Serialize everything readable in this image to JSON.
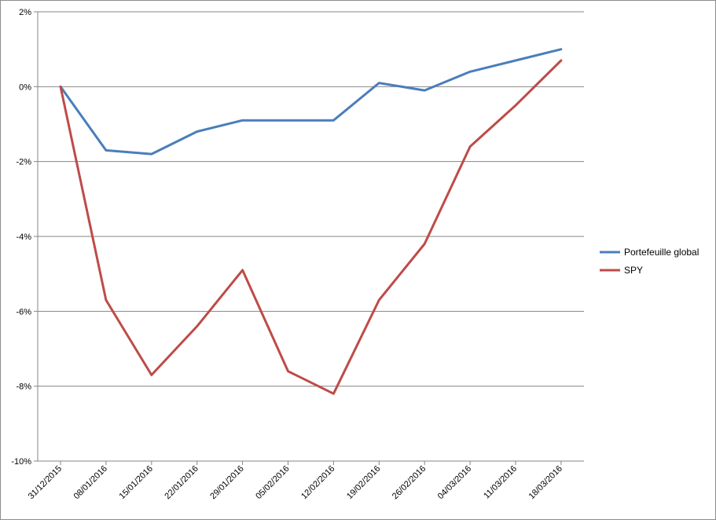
{
  "chart_data": {
    "type": "line",
    "title": "",
    "xlabel": "",
    "ylabel": "",
    "ylim": [
      -10,
      2
    ],
    "y_step": 2,
    "y_unit": "%",
    "grid": "horizontal",
    "legend_position": "right",
    "categories": [
      "31/12/2015",
      "08/01/2016",
      "15/01/2016",
      "22/01/2016",
      "29/01/2016",
      "05/02/2016",
      "12/02/2016",
      "19/02/2016",
      "26/02/2016",
      "04/03/2016",
      "11/03/2016",
      "18/03/2016"
    ],
    "series": [
      {
        "name": "Portefeuille global",
        "color": "#4a7ebb",
        "values": [
          0,
          -1.7,
          -1.8,
          -1.2,
          -0.9,
          -0.9,
          -0.9,
          0.1,
          -0.1,
          0.4,
          0.7,
          1.0
        ]
      },
      {
        "name": "SPY",
        "color": "#be4b48",
        "values": [
          0,
          -5.7,
          -7.7,
          -6.4,
          -4.9,
          -7.6,
          -8.2,
          -5.7,
          -4.2,
          -1.6,
          -0.5,
          0.7
        ]
      }
    ]
  }
}
